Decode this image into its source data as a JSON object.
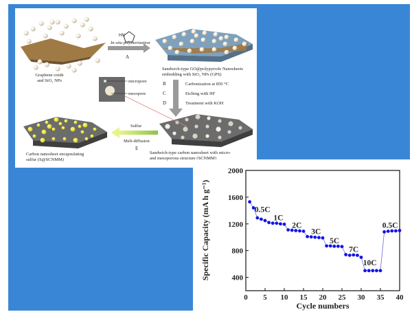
{
  "scheme": {
    "step_a_reagent": "In-situ polymerization",
    "step_a_letter": "A",
    "start_label_1": "Graphene oxide",
    "start_label_2": "and SiO₂ NPs",
    "gps_label_1": "Sandwich-type GO@polypyrrole Nanosheets",
    "gps_label_2": "embedding with SiO₂ NPs (GPS)",
    "step_b_letter": "B",
    "step_b_text": "Carbonization at 850 °C",
    "step_c_letter": "C",
    "step_c_text": "Etching with HF",
    "step_d_letter": "D",
    "step_d_text": "Treatment with KOH",
    "micropore_label": "micropore",
    "mesopore_label": "mesopore",
    "sulfur_label": "Sulfur",
    "melt_label": "Melt-diffusion",
    "step_e_letter": "E",
    "snm_label_1": "Carbon nanosheet encapsulating",
    "snm_label_2": "sulfur (S@SCNMM)",
    "scnmm_label_1": "Sandwich-type carbon nanosheet with micro-",
    "scnmm_label_2": "and mesoporous structure (SCNMM)",
    "colors": {
      "graphene": "#a07a45",
      "sphere": "#efe6d3",
      "sulfur": "#e8e000",
      "carbon": "#5a5a5a",
      "arrow": "#9a9a9a"
    }
  },
  "chart_data": {
    "type": "scatter",
    "xlabel": "Cycle numbers",
    "ylabel": "Specific Capacity (mA h g⁻¹)",
    "xlim": [
      0,
      40
    ],
    "ylim": [
      200,
      2000
    ],
    "xticks": [
      0,
      5,
      10,
      15,
      20,
      25,
      30,
      35,
      40
    ],
    "yticks": [
      400,
      800,
      1200,
      1600,
      2000
    ],
    "series": [
      {
        "x": [
          1,
          2,
          3,
          4,
          5,
          6,
          7,
          8,
          9,
          10,
          11,
          12,
          13,
          14,
          15,
          16,
          17,
          18,
          19,
          20,
          21,
          22,
          23,
          24,
          25,
          26,
          27,
          28,
          29,
          30,
          31,
          32,
          33,
          34,
          35,
          36,
          37,
          38,
          39,
          40
        ],
        "y": [
          1530,
          1440,
          1290,
          1270,
          1250,
          1220,
          1210,
          1210,
          1200,
          1195,
          1110,
          1105,
          1100,
          1095,
          1090,
          1010,
          1005,
          1000,
          995,
          990,
          870,
          870,
          865,
          865,
          860,
          740,
          730,
          735,
          730,
          700,
          500,
          500,
          500,
          500,
          500,
          1080,
          1090,
          1095,
          1095,
          1100
        ]
      }
    ],
    "annotations": [
      {
        "text": "0.5C",
        "x": 2.3,
        "y": 1380
      },
      {
        "text": "1C",
        "x": 7.2,
        "y": 1255
      },
      {
        "text": "2C",
        "x": 12.0,
        "y": 1140
      },
      {
        "text": "3C",
        "x": 17.0,
        "y": 1050
      },
      {
        "text": "5C",
        "x": 21.8,
        "y": 910
      },
      {
        "text": "7C",
        "x": 26.8,
        "y": 780
      },
      {
        "text": "10C",
        "x": 30.5,
        "y": 580
      },
      {
        "text": "0.5C",
        "x": 35.5,
        "y": 1140
      }
    ],
    "marker_color": "#1414e6",
    "line_color": "#6a6ae0"
  }
}
